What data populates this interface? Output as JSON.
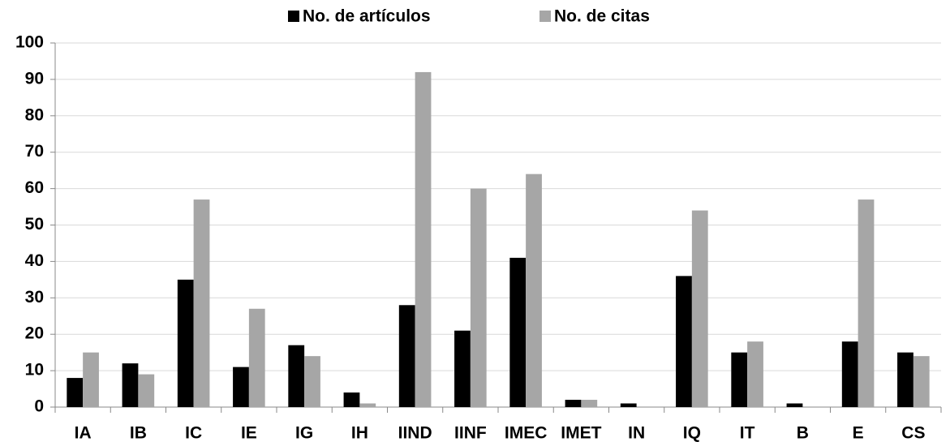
{
  "chart_data": {
    "type": "grouped-bar",
    "categories": [
      "IA",
      "IB",
      "IC",
      "IE",
      "IG",
      "IH",
      "IIND",
      "IINF",
      "IMEC",
      "IMET",
      "IN",
      "IQ",
      "IT",
      "B",
      "E",
      "CS"
    ],
    "series": [
      {
        "name": "No. de artículos",
        "color": "#000000",
        "values": [
          8,
          12,
          35,
          11,
          17,
          4,
          28,
          21,
          41,
          2,
          1,
          36,
          15,
          1,
          18,
          15
        ]
      },
      {
        "name": "No. de citas",
        "color": "#a6a6a6",
        "values": [
          15,
          9,
          57,
          27,
          14,
          1,
          92,
          60,
          64,
          2,
          0,
          54,
          18,
          0,
          57,
          14
        ]
      }
    ],
    "ylim": [
      0,
      100
    ],
    "yticks": [
      0,
      10,
      20,
      30,
      40,
      50,
      60,
      70,
      80,
      90,
      100
    ],
    "grid": true,
    "legend": "top"
  }
}
